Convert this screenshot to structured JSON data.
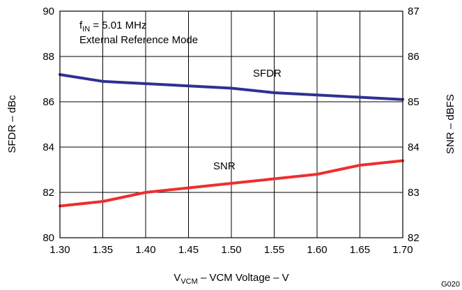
{
  "chart_data": {
    "type": "line",
    "x": [
      1.3,
      1.35,
      1.4,
      1.45,
      1.5,
      1.55,
      1.6,
      1.65,
      1.7
    ],
    "x_ticks": [
      "1.30",
      "1.35",
      "1.40",
      "1.45",
      "1.50",
      "1.55",
      "1.60",
      "1.65",
      "1.70"
    ],
    "xlim": [
      1.3,
      1.7
    ],
    "y_left_ticks": [
      "80",
      "82",
      "84",
      "86",
      "88",
      "90"
    ],
    "ylim_left": [
      80,
      90
    ],
    "y_right_ticks": [
      "82",
      "83",
      "84",
      "85",
      "86",
      "87"
    ],
    "ylim_right": [
      82,
      87
    ],
    "xlabel": {
      "main": "V",
      "sub": "VCM",
      "rest": " – VCM Voltage – V"
    },
    "ylabel_left": "SFDR – dBc",
    "ylabel_right": "SNR – dBFS",
    "annotation": {
      "line1_main": "f",
      "line1_sub": "IN",
      "line1_rest": " = 5.01 MHz",
      "line2": "External Reference Mode"
    },
    "figure_code": "G020",
    "grid": true,
    "series": [
      {
        "name": "SFDR",
        "axis": "left",
        "color": "#2e3192",
        "values": [
          87.2,
          86.9,
          86.8,
          86.7,
          86.6,
          86.4,
          86.3,
          86.2,
          86.1
        ]
      },
      {
        "name": "SNR",
        "axis": "right",
        "color": "#ee2e2e",
        "values": [
          82.7,
          82.8,
          83.0,
          83.1,
          83.2,
          83.3,
          83.4,
          83.6,
          83.7
        ]
      }
    ]
  }
}
